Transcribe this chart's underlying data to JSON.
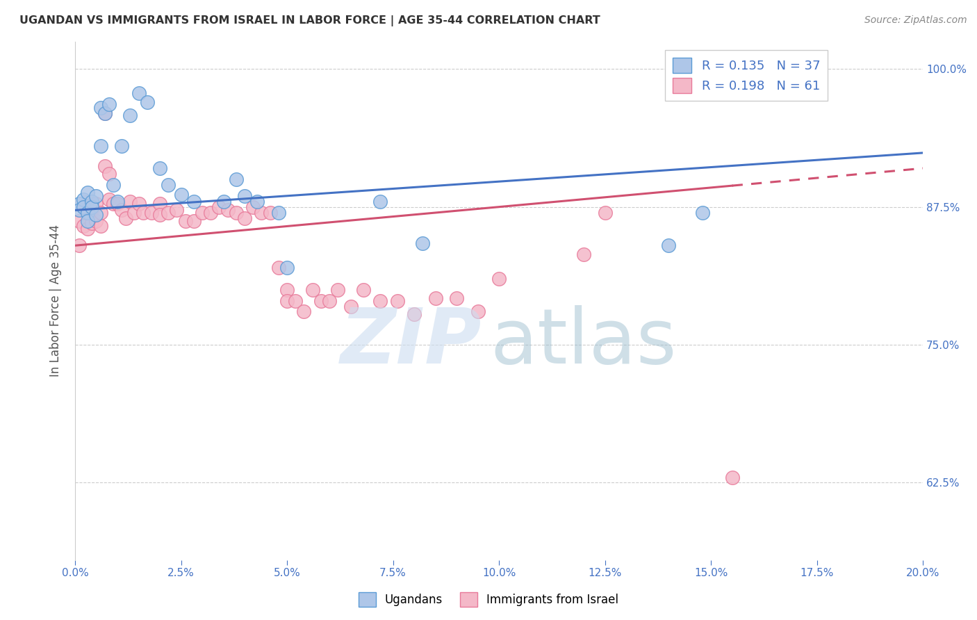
{
  "title": "UGANDAN VS IMMIGRANTS FROM ISRAEL IN LABOR FORCE | AGE 35-44 CORRELATION CHART",
  "source": "Source: ZipAtlas.com",
  "xlabel_ticks": [
    "0.0%",
    "2.5%",
    "5.0%",
    "7.5%",
    "10.0%",
    "12.5%",
    "15.0%",
    "17.5%",
    "20.0%"
  ],
  "xlabel_vals": [
    0.0,
    0.025,
    0.05,
    0.075,
    0.1,
    0.125,
    0.15,
    0.175,
    0.2
  ],
  "ylabel_ticks": [
    "62.5%",
    "75.0%",
    "87.5%",
    "100.0%"
  ],
  "ylabel_vals": [
    0.625,
    0.75,
    0.875,
    1.0
  ],
  "ylabel_label": "In Labor Force | Age 35-44",
  "legend_labels": [
    "Ugandans",
    "Immigrants from Israel"
  ],
  "r_uganda": 0.135,
  "n_uganda": 37,
  "r_israel": 0.198,
  "n_israel": 61,
  "blue_color": "#aec6e8",
  "blue_edge": "#5b9bd5",
  "pink_color": "#f4b8c8",
  "pink_edge": "#e87a9a",
  "trend_blue": "#4472c4",
  "trend_pink": "#d05070",
  "xmin": 0.0,
  "xmax": 0.2,
  "ymin": 0.555,
  "ymax": 1.025,
  "trend_blue_x0": 0.0,
  "trend_blue_y0": 0.872,
  "trend_blue_x1": 0.2,
  "trend_blue_y1": 0.924,
  "trend_pink_x0": 0.0,
  "trend_pink_y0": 0.84,
  "trend_pink_x1": 0.2,
  "trend_pink_y1": 0.91,
  "trend_pink_solid_end": 0.155,
  "ugandan_x": [
    0.001,
    0.001,
    0.002,
    0.002,
    0.003,
    0.003,
    0.003,
    0.004,
    0.004,
    0.005,
    0.005,
    0.006,
    0.006,
    0.007,
    0.008,
    0.009,
    0.01,
    0.011,
    0.013,
    0.015,
    0.017,
    0.02,
    0.022,
    0.025,
    0.028,
    0.035,
    0.038,
    0.04,
    0.043,
    0.048,
    0.05,
    0.072,
    0.082,
    0.14,
    0.148,
    0.165,
    0.17
  ],
  "ugandan_y": [
    0.878,
    0.872,
    0.882,
    0.875,
    0.888,
    0.87,
    0.862,
    0.88,
    0.875,
    0.885,
    0.868,
    0.93,
    0.965,
    0.96,
    0.968,
    0.895,
    0.88,
    0.93,
    0.958,
    0.978,
    0.97,
    0.91,
    0.895,
    0.886,
    0.88,
    0.88,
    0.9,
    0.885,
    0.88,
    0.87,
    0.82,
    0.88,
    0.842,
    0.84,
    0.87,
    0.998,
    0.998
  ],
  "israel_x": [
    0.001,
    0.001,
    0.002,
    0.002,
    0.003,
    0.003,
    0.004,
    0.004,
    0.005,
    0.005,
    0.006,
    0.006,
    0.007,
    0.007,
    0.008,
    0.008,
    0.009,
    0.01,
    0.011,
    0.012,
    0.013,
    0.014,
    0.015,
    0.016,
    0.018,
    0.02,
    0.02,
    0.022,
    0.024,
    0.026,
    0.028,
    0.03,
    0.032,
    0.034,
    0.036,
    0.038,
    0.04,
    0.042,
    0.044,
    0.046,
    0.048,
    0.05,
    0.05,
    0.052,
    0.054,
    0.056,
    0.058,
    0.06,
    0.062,
    0.065,
    0.068,
    0.072,
    0.076,
    0.08,
    0.085,
    0.09,
    0.095,
    0.1,
    0.12,
    0.125,
    0.155
  ],
  "israel_y": [
    0.84,
    0.862,
    0.875,
    0.858,
    0.88,
    0.855,
    0.872,
    0.86,
    0.878,
    0.862,
    0.87,
    0.858,
    0.912,
    0.96,
    0.905,
    0.882,
    0.878,
    0.878,
    0.872,
    0.865,
    0.88,
    0.87,
    0.878,
    0.87,
    0.87,
    0.878,
    0.868,
    0.87,
    0.872,
    0.862,
    0.862,
    0.87,
    0.87,
    0.875,
    0.872,
    0.87,
    0.865,
    0.875,
    0.87,
    0.87,
    0.82,
    0.8,
    0.79,
    0.79,
    0.78,
    0.8,
    0.79,
    0.79,
    0.8,
    0.785,
    0.8,
    0.79,
    0.79,
    0.778,
    0.792,
    0.792,
    0.78,
    0.81,
    0.832,
    0.87,
    0.63
  ]
}
